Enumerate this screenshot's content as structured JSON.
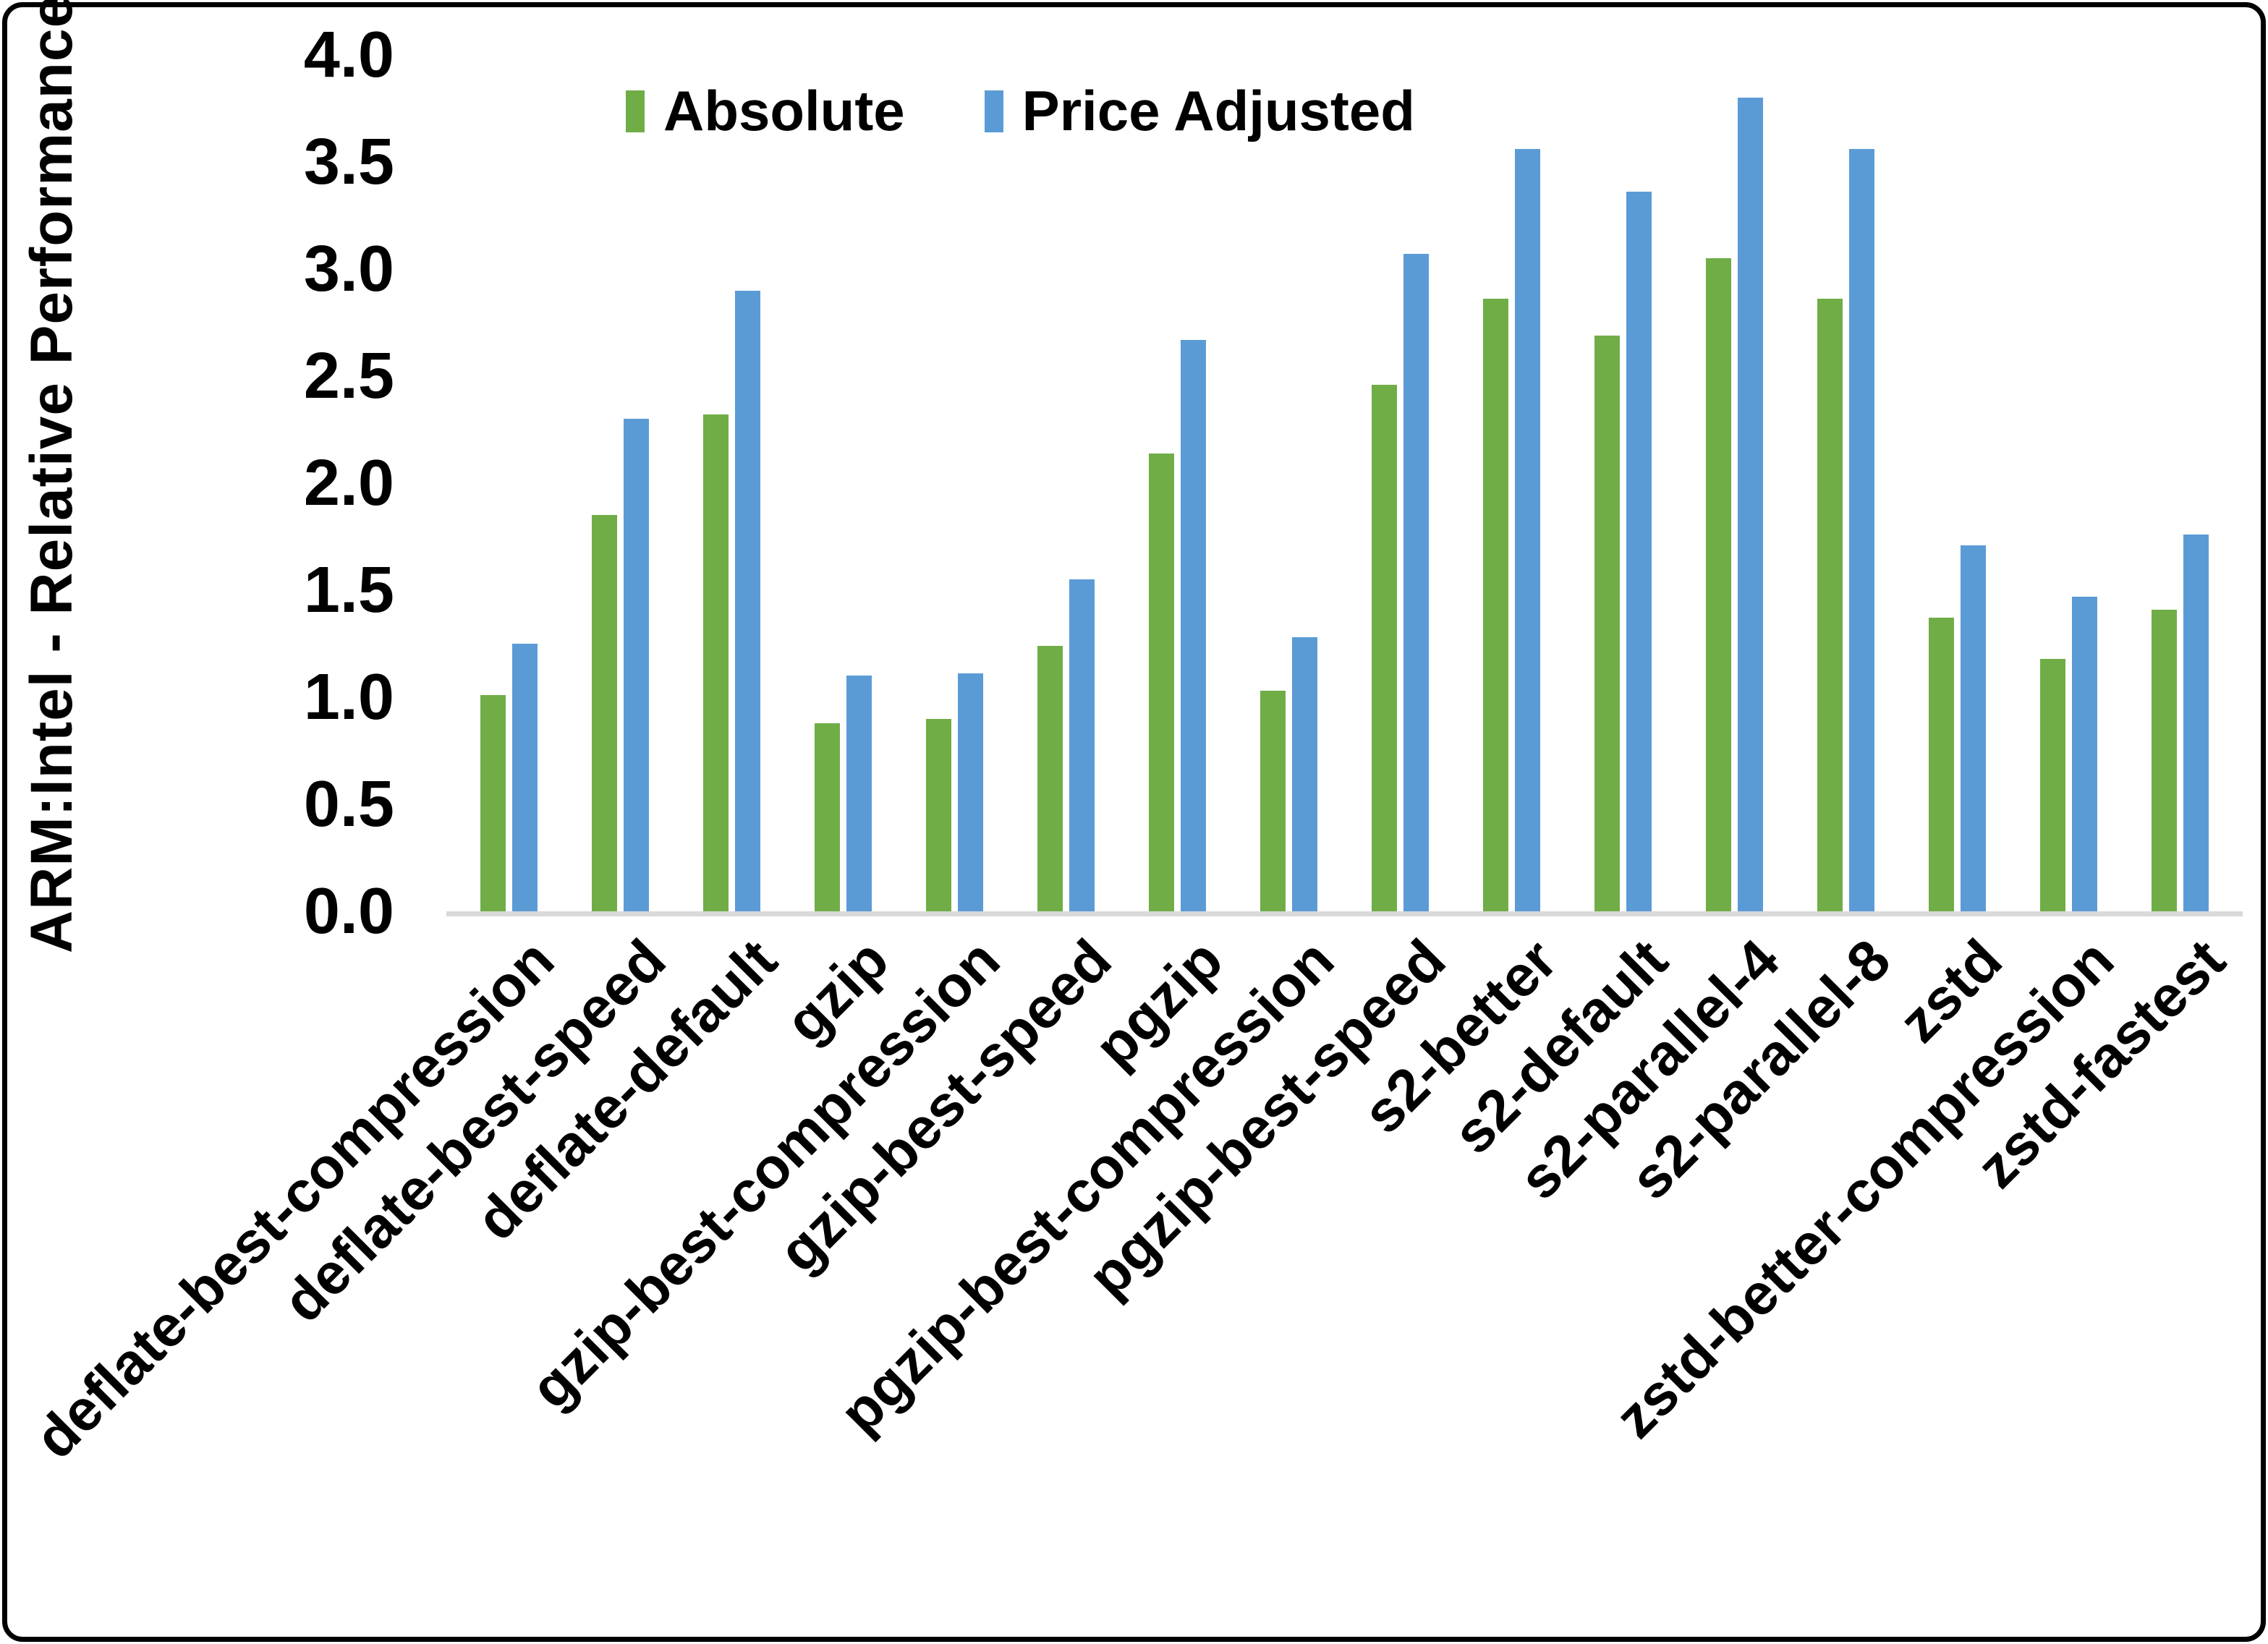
{
  "chart_data": {
    "type": "bar",
    "title": "",
    "xlabel": "",
    "ylabel": "ARM:Intel - Relative Performance",
    "ylim": [
      0.0,
      4.0
    ],
    "ytick_step": 0.5,
    "ytick_labels": [
      "0.0",
      "0.5",
      "1.0",
      "1.5",
      "2.0",
      "2.5",
      "3.0",
      "3.5",
      "4.0"
    ],
    "grid": "off",
    "legend_position": "top-center",
    "categories": [
      "deflate-best-compression",
      "deflate-best-speed",
      "deflate-default",
      "gzip",
      "gzip-best-compression",
      "gzip-best-speed",
      "pgzip",
      "pgzip-best-compression",
      "pgzip-best-speed",
      "s2-better",
      "s2-default",
      "s2-parallel-4",
      "s2-parallel-8",
      "zstd",
      "zstd-better-compression",
      "zstd-fastest"
    ],
    "series": [
      {
        "name": "Absolute",
        "color": "#70AD47",
        "values": [
          1.01,
          1.85,
          2.32,
          0.88,
          0.9,
          1.24,
          2.14,
          1.03,
          2.46,
          2.86,
          2.69,
          3.05,
          2.86,
          1.37,
          1.18,
          1.41
        ]
      },
      {
        "name": "Price Adjusted",
        "color": "#5B9BD5",
        "values": [
          1.25,
          2.3,
          2.9,
          1.1,
          1.11,
          1.55,
          2.67,
          1.28,
          3.07,
          3.56,
          3.36,
          3.8,
          3.56,
          1.71,
          1.47,
          1.76
        ]
      }
    ],
    "colors": {
      "axis_line": "#D9D9D9",
      "text": "#000000",
      "background": "#FFFFFF",
      "border": "#000000"
    }
  }
}
